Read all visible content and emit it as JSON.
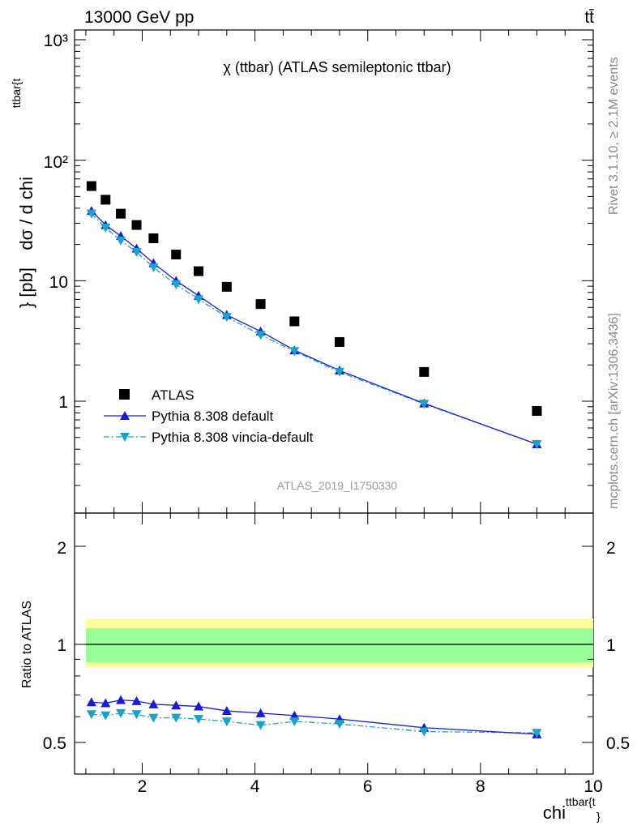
{
  "header": {
    "energy": "13000 GeV pp",
    "process": "tt̄"
  },
  "main_panel": {
    "title": "χ (ttbar) (ATLAS semileptonic ttbar)",
    "y_label": "dσ / d chi",
    "y_label_sup": "ttbar{t",
    "y_label_suffix": "} [pb]",
    "y_ticks": [
      "10³",
      "10²",
      "10",
      "1"
    ],
    "analysis_label": "ATLAS_2019_I1750330"
  },
  "ratio_panel": {
    "y_label": "Ratio to ATLAS",
    "y_ticks": [
      "2",
      "1",
      "0.5"
    ],
    "x_ticks": [
      "2",
      "4",
      "6",
      "8",
      "10"
    ],
    "x_label": "chi",
    "x_label_sup": "ttbar{t",
    "x_label_suffix": "}"
  },
  "side_labels": {
    "rivet": "Rivet 3.1.10, ≥ 2.1M events",
    "mcplots": "mcplots.cern.ch [arXiv:1306.3436]"
  },
  "legend": {
    "position": "bottom-left",
    "entries": [
      "ATLAS",
      "Pythia 8.308 default",
      "Pythia 8.308 vincia-default"
    ]
  },
  "colors": {
    "data": "#000000",
    "default": "#1a1ad6",
    "vincia": "#1aa3c4",
    "band_inner": "#99ff99",
    "band_outer": "#ffff99"
  },
  "chart_data": [
    {
      "type": "scatter",
      "title": "χ (ttbar) (ATLAS semileptonic ttbar)",
      "xlabel": "chi ttbar{t}",
      "ylabel": "dσ / d chi ttbar{t} [pb]",
      "yscale": "log",
      "xlim": [
        0.8,
        10
      ],
      "ylim": [
        0.16,
        1300
      ],
      "x": [
        1.1,
        1.35,
        1.62,
        1.9,
        2.2,
        2.6,
        3.0,
        3.5,
        4.1,
        4.7,
        5.5,
        7.0,
        9.0
      ],
      "series": [
        {
          "name": "ATLAS",
          "marker": "square",
          "values": [
            61,
            47,
            36,
            29,
            22.5,
            16.5,
            12.0,
            8.9,
            6.4,
            4.6,
            3.1,
            1.75,
            0.83
          ]
        },
        {
          "name": "Pythia 8.308 default",
          "marker": "triangle-up",
          "line": "solid",
          "values": [
            38,
            29,
            23.5,
            18.5,
            14.0,
            10.0,
            7.5,
            5.2,
            3.8,
            2.65,
            1.8,
            0.96,
            0.44
          ]
        },
        {
          "name": "Pythia 8.308 vincia-default",
          "marker": "triangle-down",
          "line": "dash-dot",
          "values": [
            36,
            27.5,
            21.5,
            17.3,
            12.9,
            9.3,
            7.0,
            5.0,
            3.55,
            2.6,
            1.75,
            0.95,
            0.44
          ]
        }
      ]
    },
    {
      "type": "line",
      "ylabel": "Ratio to ATLAS",
      "xlabel": "chi ttbar{t}",
      "xlim": [
        0.8,
        10
      ],
      "ylim": [
        0.4,
        2.4
      ],
      "x": [
        1.1,
        1.35,
        1.62,
        1.9,
        2.2,
        2.6,
        3.0,
        3.5,
        4.1,
        4.7,
        5.5,
        7.0,
        9.0
      ],
      "bands": {
        "inner": [
          0.88,
          1.12
        ],
        "outer": [
          0.85,
          1.2
        ]
      },
      "series": [
        {
          "name": "Pythia 8.308 default",
          "values": [
            0.665,
            0.66,
            0.675,
            0.67,
            0.655,
            0.65,
            0.645,
            0.625,
            0.615,
            0.605,
            0.59,
            0.555,
            0.53
          ]
        },
        {
          "name": "Pythia 8.308 vincia-default",
          "values": [
            0.61,
            0.605,
            0.615,
            0.61,
            0.595,
            0.595,
            0.59,
            0.58,
            0.565,
            0.58,
            0.57,
            0.54,
            0.535
          ]
        }
      ]
    }
  ]
}
